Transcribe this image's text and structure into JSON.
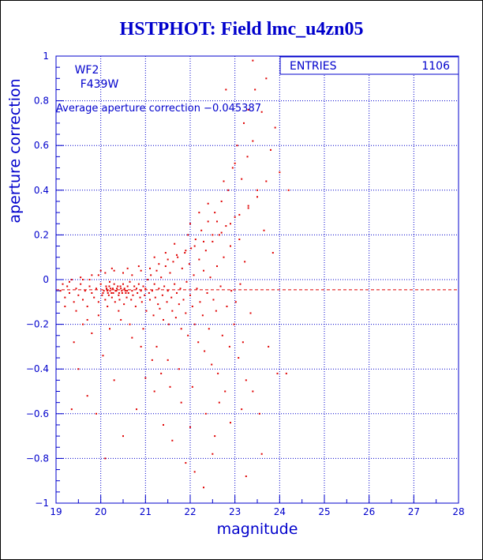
{
  "colors": {
    "title": "#0000cc",
    "axis": "#0000cc",
    "grid": "#0000cc",
    "points": "#e00000",
    "text": "#0000cc"
  },
  "chart_data": {
    "type": "scatter",
    "title": "HSTPHOT: Field lmc_u4zn05",
    "xlabel": "magnitude",
    "ylabel": "aperture correction",
    "xlim": [
      19,
      28
    ],
    "ylim": [
      -1,
      1
    ],
    "grid": true,
    "x_ticks": [
      "19",
      "20",
      "21",
      "22",
      "23",
      "24",
      "25",
      "26",
      "27",
      "28"
    ],
    "y_ticks": [
      "1",
      "0.8",
      "0.6",
      "0.4",
      "0.2",
      "0",
      "−0.2",
      "−0.4",
      "−0.6",
      "−0.8",
      "−1"
    ],
    "annotations": {
      "camera": "WF2",
      "filter": "F439W",
      "average_text": "Average aperture correction −0.045387"
    },
    "stats": {
      "label": "ENTRIES",
      "value": "1106"
    },
    "reference_line": {
      "y": -0.045387,
      "style": "dashed"
    },
    "series": [
      {
        "points": [
          [
            19.1,
            -0.05
          ],
          [
            19.2,
            -0.08
          ],
          [
            19.25,
            -0.03
          ],
          [
            19.3,
            -0.06
          ],
          [
            19.4,
            -0.1
          ],
          [
            19.45,
            -0.04
          ],
          [
            19.5,
            -0.07
          ],
          [
            19.55,
            -0.02
          ],
          [
            19.6,
            -0.09
          ],
          [
            19.65,
            -0.05
          ],
          [
            19.7,
            -0.12
          ],
          [
            19.75,
            -0.03
          ],
          [
            19.8,
            -0.06
          ],
          [
            19.85,
            -0.08
          ],
          [
            19.9,
            -0.04
          ],
          [
            19.95,
            -0.1
          ],
          [
            20.0,
            -0.02
          ],
          [
            20.05,
            -0.06
          ],
          [
            20.1,
            -0.09
          ],
          [
            20.12,
            -0.03
          ],
          [
            20.15,
            -0.05
          ],
          [
            20.18,
            -0.07
          ],
          [
            20.2,
            -0.01
          ],
          [
            20.22,
            -0.04
          ],
          [
            20.25,
            -0.08
          ],
          [
            20.28,
            -0.06
          ],
          [
            20.3,
            -0.02
          ],
          [
            20.32,
            -0.1
          ],
          [
            20.35,
            -0.05
          ],
          [
            20.38,
            -0.03
          ],
          [
            20.4,
            -0.07
          ],
          [
            20.42,
            -0.09
          ],
          [
            20.45,
            -0.04
          ],
          [
            20.48,
            -0.06
          ],
          [
            20.5,
            -0.02
          ],
          [
            20.52,
            -0.11
          ],
          [
            20.55,
            -0.05
          ],
          [
            20.58,
            -0.08
          ],
          [
            20.6,
            -0.03
          ],
          [
            20.62,
            -0.06
          ],
          [
            20.65,
            -0.01
          ],
          [
            20.68,
            -0.09
          ],
          [
            20.7,
            -0.05
          ],
          [
            20.72,
            -0.07
          ],
          [
            20.75,
            -0.03
          ],
          [
            20.78,
            -0.12
          ],
          [
            20.8,
            -0.04
          ],
          [
            20.82,
            -0.06
          ],
          [
            20.85,
            -0.02
          ],
          [
            20.88,
            -0.08
          ],
          [
            20.9,
            -0.05
          ],
          [
            20.92,
            -0.1
          ],
          [
            20.95,
            -0.03
          ],
          [
            20.98,
            -0.07
          ],
          [
            21.0,
            -0.04
          ],
          [
            21.02,
            -0.14
          ],
          [
            21.05,
            0.0
          ],
          [
            21.08,
            -0.06
          ],
          [
            21.1,
            -0.09
          ],
          [
            21.12,
            0.02
          ],
          [
            21.15,
            -0.05
          ],
          [
            21.18,
            -0.16
          ],
          [
            21.2,
            -0.02
          ],
          [
            21.22,
            -0.08
          ],
          [
            21.25,
            0.04
          ],
          [
            21.28,
            -0.11
          ],
          [
            21.3,
            -0.04
          ],
          [
            21.32,
            -0.13
          ],
          [
            21.35,
            0.01
          ],
          [
            21.38,
            -0.07
          ],
          [
            21.4,
            -0.18
          ],
          [
            21.42,
            -0.03
          ],
          [
            21.45,
            0.06
          ],
          [
            21.48,
            -0.1
          ],
          [
            21.5,
            -0.05
          ],
          [
            21.52,
            -0.2
          ],
          [
            21.55,
            0.03
          ],
          [
            21.58,
            -0.08
          ],
          [
            21.6,
            -0.14
          ],
          [
            21.62,
            0.08
          ],
          [
            21.65,
            -0.02
          ],
          [
            21.68,
            -0.17
          ],
          [
            21.7,
            -0.06
          ],
          [
            21.72,
            0.1
          ],
          [
            21.75,
            -0.11
          ],
          [
            21.78,
            -0.04
          ],
          [
            21.8,
            -0.22
          ],
          [
            21.82,
            0.05
          ],
          [
            21.85,
            -0.09
          ],
          [
            21.88,
            0.12
          ],
          [
            21.9,
            -0.15
          ],
          [
            21.92,
            -0.01
          ],
          [
            21.95,
            -0.25
          ],
          [
            21.98,
            0.07
          ],
          [
            22.0,
            -0.07
          ],
          [
            22.02,
            0.14
          ],
          [
            22.05,
            -0.12
          ],
          [
            22.08,
            0.02
          ],
          [
            22.1,
            -0.2
          ],
          [
            22.12,
            0.18
          ],
          [
            22.15,
            -0.04
          ],
          [
            22.18,
            -0.28
          ],
          [
            22.2,
            0.09
          ],
          [
            22.22,
            -0.1
          ],
          [
            22.25,
            0.22
          ],
          [
            22.28,
            -0.16
          ],
          [
            22.3,
            0.04
          ],
          [
            22.32,
            -0.32
          ],
          [
            22.35,
            0.13
          ],
          [
            22.38,
            -0.06
          ],
          [
            22.4,
            0.26
          ],
          [
            22.42,
            -0.22
          ],
          [
            22.45,
            0.01
          ],
          [
            22.48,
            -0.38
          ],
          [
            22.5,
            0.17
          ],
          [
            22.52,
            -0.09
          ],
          [
            22.55,
            0.3
          ],
          [
            22.58,
            -0.14
          ],
          [
            22.6,
            0.06
          ],
          [
            22.62,
            -0.42
          ],
          [
            22.65,
            0.2
          ],
          [
            22.68,
            -0.03
          ],
          [
            22.7,
            0.35
          ],
          [
            22.72,
            -0.25
          ],
          [
            22.75,
            0.1
          ],
          [
            22.78,
            -0.5
          ],
          [
            22.8,
            0.24
          ],
          [
            22.82,
            -0.12
          ],
          [
            22.85,
            0.4
          ],
          [
            22.88,
            -0.3
          ],
          [
            22.9,
            0.15
          ],
          [
            22.92,
            -0.05
          ],
          [
            22.95,
            0.5
          ],
          [
            22.98,
            -0.2
          ],
          [
            23.0,
            0.28
          ],
          [
            23.02,
            -0.1
          ],
          [
            23.05,
            0.6
          ],
          [
            23.08,
            -0.35
          ],
          [
            23.1,
            0.18
          ],
          [
            23.12,
            -0.02
          ],
          [
            23.15,
            0.45
          ],
          [
            23.18,
            -0.28
          ],
          [
            23.2,
            0.7
          ],
          [
            23.22,
            0.08
          ],
          [
            23.25,
            -0.45
          ],
          [
            23.28,
            0.55
          ],
          [
            23.3,
            0.32
          ],
          [
            23.35,
            -0.15
          ],
          [
            23.4,
            0.62
          ],
          [
            23.45,
            0.85
          ],
          [
            23.5,
            0.4
          ],
          [
            23.55,
            -0.6
          ],
          [
            23.6,
            0.75
          ],
          [
            23.65,
            0.22
          ],
          [
            23.7,
            0.9
          ],
          [
            23.75,
            -0.3
          ],
          [
            23.8,
            0.58
          ],
          [
            23.85,
            0.12
          ],
          [
            23.9,
            0.68
          ],
          [
            23.95,
            -0.42
          ],
          [
            24.0,
            0.48
          ],
          [
            24.2,
            0.4
          ],
          [
            24.15,
            -0.42
          ],
          [
            23.4,
            0.98
          ],
          [
            23.3,
            0.76
          ],
          [
            22.8,
            0.85
          ],
          [
            22.6,
            0.26
          ],
          [
            22.3,
            -0.93
          ],
          [
            22.1,
            -0.86
          ],
          [
            21.9,
            -0.82
          ],
          [
            21.6,
            -0.72
          ],
          [
            21.4,
            -0.65
          ],
          [
            21.2,
            -0.5
          ],
          [
            21.0,
            -0.44
          ],
          [
            20.8,
            -0.58
          ],
          [
            20.5,
            -0.7
          ],
          [
            20.3,
            -0.45
          ],
          [
            20.1,
            -0.8
          ],
          [
            19.9,
            -0.6
          ],
          [
            19.7,
            -0.52
          ],
          [
            19.5,
            -0.4
          ],
          [
            19.4,
            -0.28
          ],
          [
            19.35,
            -0.58
          ],
          [
            19.6,
            -0.2
          ],
          [
            19.8,
            -0.24
          ],
          [
            20.05,
            -0.34
          ],
          [
            20.2,
            -0.22
          ],
          [
            20.45,
            -0.18
          ],
          [
            20.7,
            -0.26
          ],
          [
            20.95,
            -0.22
          ],
          [
            21.25,
            -0.3
          ],
          [
            21.5,
            -0.36
          ],
          [
            21.75,
            -0.4
          ],
          [
            22.05,
            -0.48
          ],
          [
            22.35,
            -0.6
          ],
          [
            22.55,
            -0.7
          ],
          [
            22.65,
            -0.55
          ],
          [
            22.9,
            -0.64
          ],
          [
            23.15,
            -0.58
          ],
          [
            23.4,
            -0.5
          ],
          [
            23.6,
            -0.78
          ],
          [
            23.25,
            -0.88
          ],
          [
            22.5,
            -0.78
          ],
          [
            22.0,
            -0.66
          ],
          [
            21.8,
            -0.55
          ],
          [
            21.55,
            -0.48
          ],
          [
            21.35,
            -0.42
          ],
          [
            21.15,
            -0.36
          ],
          [
            20.9,
            -0.3
          ],
          [
            20.65,
            -0.2
          ],
          [
            20.4,
            -0.14
          ],
          [
            20.15,
            -0.12
          ],
          [
            19.95,
            -0.16
          ],
          [
            19.7,
            -0.18
          ],
          [
            19.45,
            -0.14
          ],
          [
            19.2,
            -0.12
          ],
          [
            19.15,
            -0.02
          ],
          [
            19.35,
            0.0
          ],
          [
            19.55,
            0.01
          ],
          [
            19.75,
            0.0
          ],
          [
            19.95,
            0.02
          ],
          [
            20.1,
            0.03
          ],
          [
            20.3,
            0.04
          ],
          [
            20.5,
            0.03
          ],
          [
            20.7,
            0.02
          ],
          [
            20.9,
            0.04
          ],
          [
            21.1,
            0.05
          ],
          [
            21.3,
            0.07
          ],
          [
            21.5,
            0.09
          ],
          [
            21.7,
            0.11
          ],
          [
            21.9,
            0.13
          ],
          [
            22.1,
            0.15
          ],
          [
            22.3,
            0.17
          ],
          [
            22.5,
            0.2
          ],
          [
            22.7,
            0.21
          ],
          [
            22.9,
            0.25
          ],
          [
            23.1,
            0.29
          ],
          [
            23.3,
            0.33
          ],
          [
            23.5,
            0.37
          ],
          [
            23.7,
            0.44
          ],
          [
            22.0,
            0.25
          ],
          [
            22.4,
            0.34
          ],
          [
            22.75,
            0.44
          ],
          [
            23.0,
            0.52
          ],
          [
            22.2,
            0.3
          ],
          [
            21.95,
            0.2
          ],
          [
            21.65,
            0.16
          ],
          [
            21.45,
            0.12
          ],
          [
            21.2,
            0.1
          ],
          [
            20.85,
            0.06
          ],
          [
            20.6,
            0.05
          ],
          [
            20.25,
            0.05
          ],
          [
            20.0,
            0.04
          ],
          [
            19.8,
            0.02
          ],
          [
            19.6,
            0.0
          ],
          [
            19.3,
            -0.01
          ],
          [
            20.33,
            -0.05
          ],
          [
            20.36,
            -0.04
          ],
          [
            20.41,
            -0.06
          ],
          [
            20.44,
            -0.03
          ],
          [
            20.47,
            -0.05
          ],
          [
            20.53,
            -0.04
          ],
          [
            20.56,
            -0.06
          ],
          [
            20.59,
            -0.05
          ],
          [
            20.27,
            -0.04
          ],
          [
            20.24,
            -0.06
          ],
          [
            20.21,
            -0.05
          ],
          [
            20.19,
            -0.03
          ],
          [
            20.16,
            -0.06
          ],
          [
            20.13,
            -0.04
          ],
          [
            20.07,
            -0.05
          ],
          [
            20.03,
            -0.07
          ]
        ]
      }
    ]
  }
}
